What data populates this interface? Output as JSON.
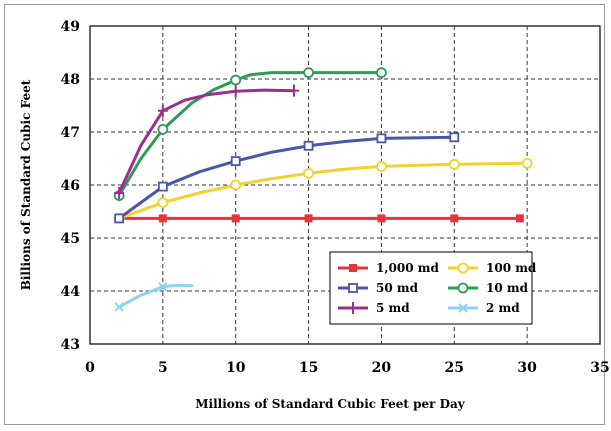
{
  "chart_data": {
    "type": "line",
    "title": "",
    "xlabel": "Millions of Standard Cubic Feet per Day",
    "ylabel": "Billions of Standard Cubic Feet",
    "xlim": [
      0,
      35
    ],
    "ylim": [
      43,
      49
    ],
    "x_ticks": [
      "0",
      "5",
      "10",
      "15",
      "20",
      "25",
      "30",
      "35"
    ],
    "y_ticks": [
      "43",
      "44",
      "45",
      "46",
      "47",
      "48",
      "49"
    ],
    "grid": true,
    "legend_position": "bottom-right",
    "series": [
      {
        "name": "1,000 md",
        "color": "#e8333b",
        "marker": "filled-square",
        "points": [
          [
            2,
            45.37
          ],
          [
            5,
            45.37
          ],
          [
            10,
            45.37
          ],
          [
            15,
            45.37
          ],
          [
            20,
            45.37
          ],
          [
            25,
            45.37
          ],
          [
            29.5,
            45.37
          ]
        ],
        "marker_x": [
          2,
          5,
          10,
          15,
          20,
          25,
          29.5
        ]
      },
      {
        "name": "100 md",
        "color": "#f2d22e",
        "marker": "open-circle",
        "points": [
          [
            2,
            45.37
          ],
          [
            5,
            45.67
          ],
          [
            7.5,
            45.85
          ],
          [
            10,
            46.0
          ],
          [
            12.5,
            46.12
          ],
          [
            15,
            46.22
          ],
          [
            17.5,
            46.3
          ],
          [
            20,
            46.35
          ],
          [
            25,
            46.39
          ],
          [
            30,
            46.41
          ]
        ],
        "marker_x": [
          2,
          5,
          10,
          15,
          20,
          25,
          30
        ]
      },
      {
        "name": "50 md",
        "color": "#4a56a8",
        "marker": "open-square",
        "points": [
          [
            2,
            45.37
          ],
          [
            5,
            45.97
          ],
          [
            7.5,
            46.25
          ],
          [
            10,
            46.45
          ],
          [
            12.5,
            46.62
          ],
          [
            15,
            46.74
          ],
          [
            17.5,
            46.82
          ],
          [
            20,
            46.88
          ],
          [
            25,
            46.9
          ]
        ],
        "marker_x": [
          2,
          5,
          10,
          15,
          20,
          25
        ]
      },
      {
        "name": "10 md",
        "color": "#2e9b56",
        "marker": "open-circle",
        "points": [
          [
            2,
            45.8
          ],
          [
            3.5,
            46.5
          ],
          [
            5,
            47.05
          ],
          [
            7,
            47.55
          ],
          [
            8.5,
            47.8
          ],
          [
            10,
            47.98
          ],
          [
            11,
            48.08
          ],
          [
            12.5,
            48.12
          ],
          [
            15,
            48.12
          ],
          [
            20,
            48.12
          ]
        ],
        "marker_x": [
          2,
          5,
          10,
          15,
          20
        ]
      },
      {
        "name": "5 md",
        "color": "#9b2f8e",
        "marker": "plus",
        "points": [
          [
            2,
            45.85
          ],
          [
            3.5,
            46.75
          ],
          [
            5,
            47.4
          ],
          [
            6.5,
            47.6
          ],
          [
            8,
            47.7
          ],
          [
            10,
            47.77
          ],
          [
            12,
            47.79
          ],
          [
            14,
            47.78
          ]
        ],
        "marker_x": [
          2,
          5,
          10,
          14
        ]
      },
      {
        "name": "2 md",
        "color": "#8ed3ee",
        "marker": "cross",
        "points": [
          [
            2,
            43.7
          ],
          [
            3.5,
            43.92
          ],
          [
            5,
            44.08
          ],
          [
            6,
            44.11
          ],
          [
            7,
            44.1
          ]
        ],
        "marker_x": [
          2,
          5
        ]
      }
    ]
  }
}
